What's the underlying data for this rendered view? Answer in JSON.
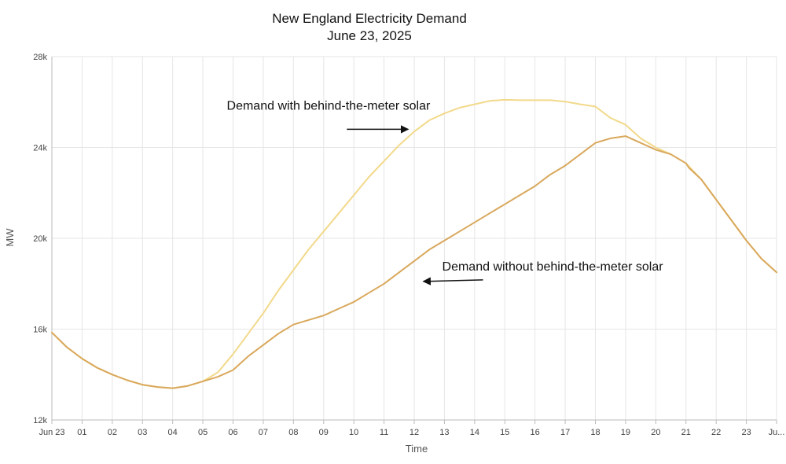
{
  "chart_data": {
    "type": "line",
    "title": "New England Electricity Demand",
    "subtitle": "June 23, 2025",
    "xlabel": "Time",
    "ylabel": "MW",
    "xlim": [
      0,
      24
    ],
    "ylim": [
      12000,
      28000
    ],
    "x_ticks": [
      {
        "label": "Jun 23",
        "value": 0
      },
      {
        "label": "01",
        "value": 1
      },
      {
        "label": "02",
        "value": 2
      },
      {
        "label": "03",
        "value": 3
      },
      {
        "label": "04",
        "value": 4
      },
      {
        "label": "05",
        "value": 5
      },
      {
        "label": "06",
        "value": 6
      },
      {
        "label": "07",
        "value": 7
      },
      {
        "label": "08",
        "value": 8
      },
      {
        "label": "09",
        "value": 9
      },
      {
        "label": "10",
        "value": 10
      },
      {
        "label": "11",
        "value": 11
      },
      {
        "label": "12",
        "value": 12
      },
      {
        "label": "13",
        "value": 13
      },
      {
        "label": "14",
        "value": 14
      },
      {
        "label": "15",
        "value": 15
      },
      {
        "label": "16",
        "value": 16
      },
      {
        "label": "17",
        "value": 17
      },
      {
        "label": "18",
        "value": 18
      },
      {
        "label": "19",
        "value": 19
      },
      {
        "label": "20",
        "value": 20
      },
      {
        "label": "21",
        "value": 21
      },
      {
        "label": "22",
        "value": 22
      },
      {
        "label": "23",
        "value": 23
      },
      {
        "label": "Ju...",
        "value": 24
      }
    ],
    "y_ticks": [
      {
        "label": "12k",
        "value": 12000
      },
      {
        "label": "16k",
        "value": 16000
      },
      {
        "label": "20k",
        "value": 20000
      },
      {
        "label": "24k",
        "value": 24000
      },
      {
        "label": "28k",
        "value": 28000
      }
    ],
    "grid": true,
    "series": [
      {
        "name": "Demand with behind-the-meter solar",
        "color": "#f2d98a",
        "x": [
          0,
          0.5,
          1,
          1.5,
          2,
          2.5,
          3,
          3.5,
          4,
          4.5,
          5,
          5.5,
          6,
          6.5,
          7,
          7.5,
          8,
          8.5,
          9,
          9.5,
          10,
          10.5,
          11,
          11.5,
          12,
          12.5,
          13,
          13.5,
          14,
          14.5,
          15,
          15.5,
          16,
          16.5,
          17,
          17.5,
          18,
          18.5,
          19,
          19.5,
          20,
          20.5,
          21,
          21.5,
          22,
          22.5,
          23,
          23.5,
          24
        ],
        "values": [
          15850,
          15200,
          14700,
          14300,
          14000,
          13750,
          13550,
          13450,
          13400,
          13500,
          13700,
          14100,
          14900,
          15800,
          16700,
          17700,
          18600,
          19500,
          20300,
          21100,
          21900,
          22700,
          23400,
          24100,
          24700,
          25200,
          25500,
          25750,
          25900,
          26050,
          26100,
          26080,
          26080,
          26080,
          26020,
          25900,
          25800,
          25300,
          25000,
          24400,
          24000,
          23700,
          23300,
          22600,
          21700,
          20800,
          19900,
          19100,
          18500
        ]
      },
      {
        "name": "Demand without behind-the-meter solar",
        "color": "#d9a85c",
        "x": [
          0,
          0.5,
          1,
          1.5,
          2,
          2.5,
          3,
          3.5,
          4,
          4.5,
          5,
          5.5,
          6,
          6.5,
          7,
          7.5,
          8,
          8.5,
          9,
          9.5,
          10,
          10.5,
          11,
          11.5,
          12,
          12.5,
          13,
          13.5,
          14,
          14.5,
          15,
          15.5,
          16,
          16.5,
          17,
          17.5,
          18,
          18.5,
          19,
          19.5,
          20,
          20.5,
          21,
          21.1,
          21.5,
          22,
          22.5,
          23,
          23.5,
          24
        ],
        "values": [
          15850,
          15200,
          14700,
          14300,
          14000,
          13750,
          13550,
          13450,
          13400,
          13500,
          13700,
          13900,
          14200,
          14800,
          15300,
          15800,
          16200,
          16400,
          16600,
          16900,
          17200,
          17600,
          18000,
          18500,
          19000,
          19500,
          19900,
          20300,
          20700,
          21100,
          21500,
          21900,
          22300,
          22800,
          23200,
          23700,
          24200,
          24400,
          24500,
          24200,
          23900,
          23700,
          23300,
          23100,
          22600,
          21700,
          20800,
          19900,
          19100,
          18500
        ]
      }
    ],
    "annotations": [
      {
        "text": "Demand with behind-the-meter solar",
        "arrow": "right",
        "x": 11.8,
        "y": 24800
      },
      {
        "text": "Demand without behind-the-meter solar",
        "arrow": "left",
        "x": 12.3,
        "y": 18100
      }
    ]
  }
}
